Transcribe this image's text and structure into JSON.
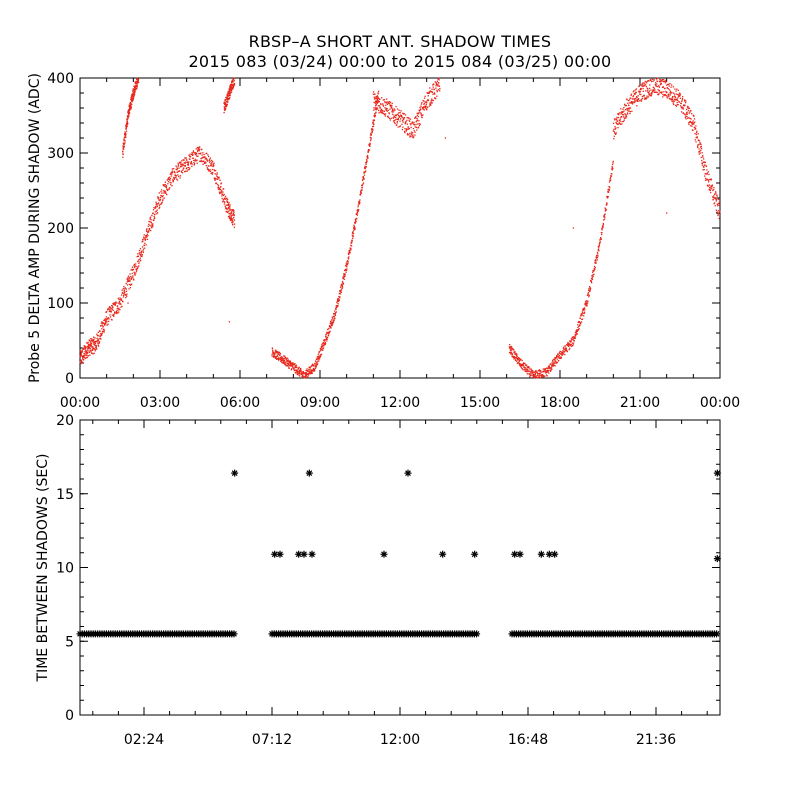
{
  "title": {
    "line1": "RBSP–A SHORT ANT. SHADOW TIMES",
    "line2": "2015 083 (03/24) 00:00 to 2015 084 (03/25) 00:00"
  },
  "chart_data": [
    {
      "type": "scatter",
      "ylabel": "Probe 5 DELTA AMP DURING SHADOW (ADC)",
      "xlim": [
        0,
        24
      ],
      "ylim": [
        0,
        400
      ],
      "x_ticks": [
        "00:00",
        "03:00",
        "06:00",
        "09:00",
        "12:00",
        "15:00",
        "18:00",
        "21:00",
        "00:00"
      ],
      "y_ticks": [
        "0",
        "100",
        "200",
        "300",
        "400"
      ],
      "marker_color": "#e8261a",
      "segments": [
        {
          "x": [
            0.0,
            0.3,
            0.6,
            1.0,
            1.5,
            2.0,
            2.5,
            3.0,
            3.5,
            4.0,
            4.5,
            5.0,
            5.5,
            5.8
          ],
          "y": [
            25,
            40,
            45,
            80,
            100,
            140,
            190,
            240,
            270,
            285,
            300,
            280,
            230,
            210
          ],
          "spread": 22
        },
        {
          "x": [
            1.6,
            1.8,
            2.0,
            2.2
          ],
          "y": [
            300,
            350,
            380,
            400
          ],
          "spread": 15
        },
        {
          "x": [
            5.4,
            5.6,
            5.8
          ],
          "y": [
            360,
            380,
            400
          ],
          "spread": 15
        },
        {
          "x": [
            7.2,
            7.6,
            8.0,
            8.4,
            8.8,
            9.2,
            9.6,
            10.0,
            10.4,
            10.8,
            11.2
          ],
          "y": [
            35,
            25,
            15,
            3,
            15,
            50,
            90,
            150,
            220,
            300,
            380
          ],
          "spread": 12
        },
        {
          "x": [
            11.0,
            11.5,
            12.0,
            12.5,
            13.0,
            13.5
          ],
          "y": [
            370,
            360,
            345,
            330,
            370,
            390
          ],
          "spread": 25
        },
        {
          "x": [
            16.1,
            16.5,
            17.0,
            17.5,
            18.0,
            18.5,
            19.0,
            19.5,
            20.0
          ],
          "y": [
            40,
            20,
            3,
            8,
            30,
            50,
            100,
            180,
            290
          ],
          "spread": 12
        },
        {
          "x": [
            20.0,
            20.5,
            21.0,
            21.5,
            22.0,
            22.5,
            23.0,
            23.5,
            24.0
          ],
          "y": [
            330,
            360,
            380,
            390,
            385,
            370,
            340,
            270,
            220
          ],
          "spread": 25
        }
      ],
      "outliers": [
        {
          "x": 1.8,
          "y": 100
        },
        {
          "x": 5.6,
          "y": 75
        },
        {
          "x": 13.7,
          "y": 320
        },
        {
          "x": 18.5,
          "y": 200
        },
        {
          "x": 22.0,
          "y": 220
        }
      ]
    },
    {
      "type": "scatter",
      "ylabel": "TIME BETWEEN SHADOWS (SEC)",
      "xlim": [
        0,
        24
      ],
      "ylim": [
        0,
        20
      ],
      "x_ticks": [
        "02:24",
        "07:12",
        "12:00",
        "16:48",
        "21:36"
      ],
      "x_tick_values": [
        2.4,
        7.2,
        12.0,
        16.8,
        21.6
      ],
      "y_ticks": [
        "0",
        "5",
        "10",
        "15",
        "20"
      ],
      "marker_color": "#000000",
      "baseline": {
        "y": 5.5,
        "ranges": [
          [
            0.0,
            5.8
          ],
          [
            7.2,
            14.9
          ],
          [
            16.2,
            23.9
          ]
        ]
      },
      "points": [
        {
          "x": 5.8,
          "y": 16.4
        },
        {
          "x": 8.6,
          "y": 16.4
        },
        {
          "x": 12.3,
          "y": 16.4
        },
        {
          "x": 23.9,
          "y": 16.4
        },
        {
          "x": 7.3,
          "y": 10.9
        },
        {
          "x": 7.5,
          "y": 10.9
        },
        {
          "x": 8.2,
          "y": 10.9
        },
        {
          "x": 8.4,
          "y": 10.9
        },
        {
          "x": 8.7,
          "y": 10.9
        },
        {
          "x": 11.4,
          "y": 10.9
        },
        {
          "x": 13.6,
          "y": 10.9
        },
        {
          "x": 14.8,
          "y": 10.9
        },
        {
          "x": 16.3,
          "y": 10.9
        },
        {
          "x": 16.5,
          "y": 10.9
        },
        {
          "x": 17.3,
          "y": 10.9
        },
        {
          "x": 17.6,
          "y": 10.9
        },
        {
          "x": 17.8,
          "y": 10.9
        },
        {
          "x": 23.9,
          "y": 10.6
        }
      ]
    }
  ]
}
